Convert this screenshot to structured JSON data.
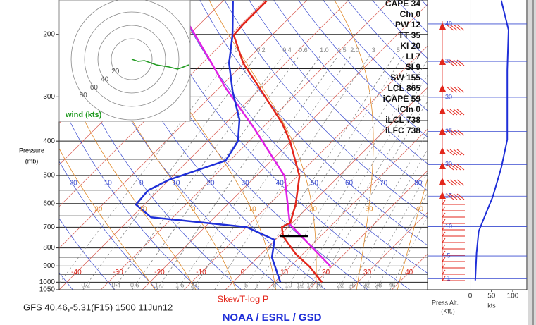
{
  "chart_data": {
    "type": "skewt",
    "title": "SkewT-log P",
    "subtitle": "GFS 40.46,-5.31(F15) 1500 11Jun12",
    "footer": "NOAA / ESRL / GSD",
    "ylabel": "Pressure",
    "yunit": "(mb)",
    "log_scale": true,
    "ylim": [
      1050,
      160
    ],
    "yticks": [
      200,
      300,
      400,
      500,
      600,
      700,
      800,
      900,
      1000,
      1050
    ],
    "isobars": [
      200,
      250,
      300,
      350,
      400,
      450,
      500,
      550,
      600,
      650,
      700,
      750,
      800,
      850,
      900,
      950,
      1000,
      1050
    ],
    "xlim": [
      -40,
      48.6
    ],
    "xticks": [
      -40,
      -30,
      -20,
      -10,
      0,
      10,
      20,
      30,
      40
    ],
    "isotherms": [
      -110,
      -100,
      -90,
      -80,
      -70,
      -60,
      -50,
      -40,
      -30,
      -20,
      -10,
      0,
      10,
      20,
      30,
      40
    ],
    "dry_adiabats": [
      -40,
      -30,
      -20,
      -10,
      0,
      10,
      20,
      30,
      40,
      50,
      60,
      70,
      80,
      90,
      100,
      110,
      120,
      130,
      140,
      150,
      160
    ],
    "dry_adiabat_labels": [
      -20,
      -10,
      0,
      10,
      20,
      30,
      40,
      50,
      60,
      70,
      80
    ],
    "moist_adiabats": [
      -20,
      -10,
      0,
      10,
      20,
      30,
      40
    ],
    "mixing_ratio_top": [
      {
        "value": 0.1,
        "label": "0"
      },
      0.2,
      0.4,
      0.6,
      {
        "value": 1,
        "label": "1.0"
      },
      1.5,
      {
        "value": 2,
        "label": "2.0"
      },
      3,
      5
    ],
    "mixing_ratio_bottom": [
      0.2,
      0.4,
      0.6,
      {
        "value": 1,
        "label": "1.0"
      },
      1.5,
      {
        "value": 2,
        "label": "2.0"
      },
      5,
      6,
      8,
      10,
      12,
      14,
      16,
      22,
      26,
      32,
      38,
      46
    ],
    "temperature": {
      "color": "#e3261b",
      "pressure": [
        1000,
        904,
        832,
        742,
        699,
        680,
        604,
        502,
        400,
        356,
        287,
        241,
        201,
        187,
        161
      ],
      "values": [
        21.4,
        14.7,
        8.3,
        1.0,
        -1.5,
        -0.5,
        -3.6,
        -9.5,
        -20.2,
        -26.4,
        -39.5,
        -50.2,
        -59.2,
        -59.5,
        -59.5
      ]
    },
    "dewpoint": {
      "color": "#1f2fd8",
      "pressure": [
        1000,
        851,
        759,
        699,
        656,
        604,
        551,
        514,
        454,
        400,
        348,
        290,
        241,
        201,
        161
      ],
      "values": [
        11.4,
        3.4,
        -0.2,
        -10.0,
        -35.3,
        -42.0,
        -42.5,
        -40.0,
        -31.0,
        -32.7,
        -37.5,
        -45.9,
        -53.6,
        -59.5,
        -67.6
      ]
    },
    "parcel": {
      "color": "#e020e6",
      "pressure": [
        904,
        687,
        502,
        365,
        283,
        241,
        160
      ],
      "values": [
        19.8,
        -0.2,
        -13.1,
        -32.4,
        -48.5,
        -57.8,
        -81.9
      ]
    },
    "indices": [
      "CAPE 34",
      "CIn 0",
      "PW 12",
      "TT 35",
      "KI 20",
      "LI 7",
      "SI 9",
      "SW 155",
      "LCL 865",
      "iCAPE 59",
      "iCIn 0",
      "iLCL 738",
      "iLFC 738"
    ],
    "hodograph": {
      "label": "wind (kts)",
      "rings": [
        20,
        40,
        60,
        80
      ]
    },
    "wind_profile": {
      "color": "#1f2fd8",
      "xlabel": "kts",
      "ylabel": [
        "Press Alt.",
        "(Kft.)"
      ],
      "xlim": [
        -100,
        133
      ],
      "xticks": [
        0,
        50,
        100
      ],
      "yticks": [
        1,
        5,
        10,
        15,
        20,
        25,
        30,
        35,
        40
      ],
      "altitude": [
        43,
        39.2,
        33.8,
        23.8,
        19.5,
        14.9,
        11.5,
        9.2,
        5.5,
        0.7
      ],
      "values": [
        73,
        90,
        87,
        87,
        73,
        53,
        33,
        20,
        15,
        12
      ]
    }
  }
}
